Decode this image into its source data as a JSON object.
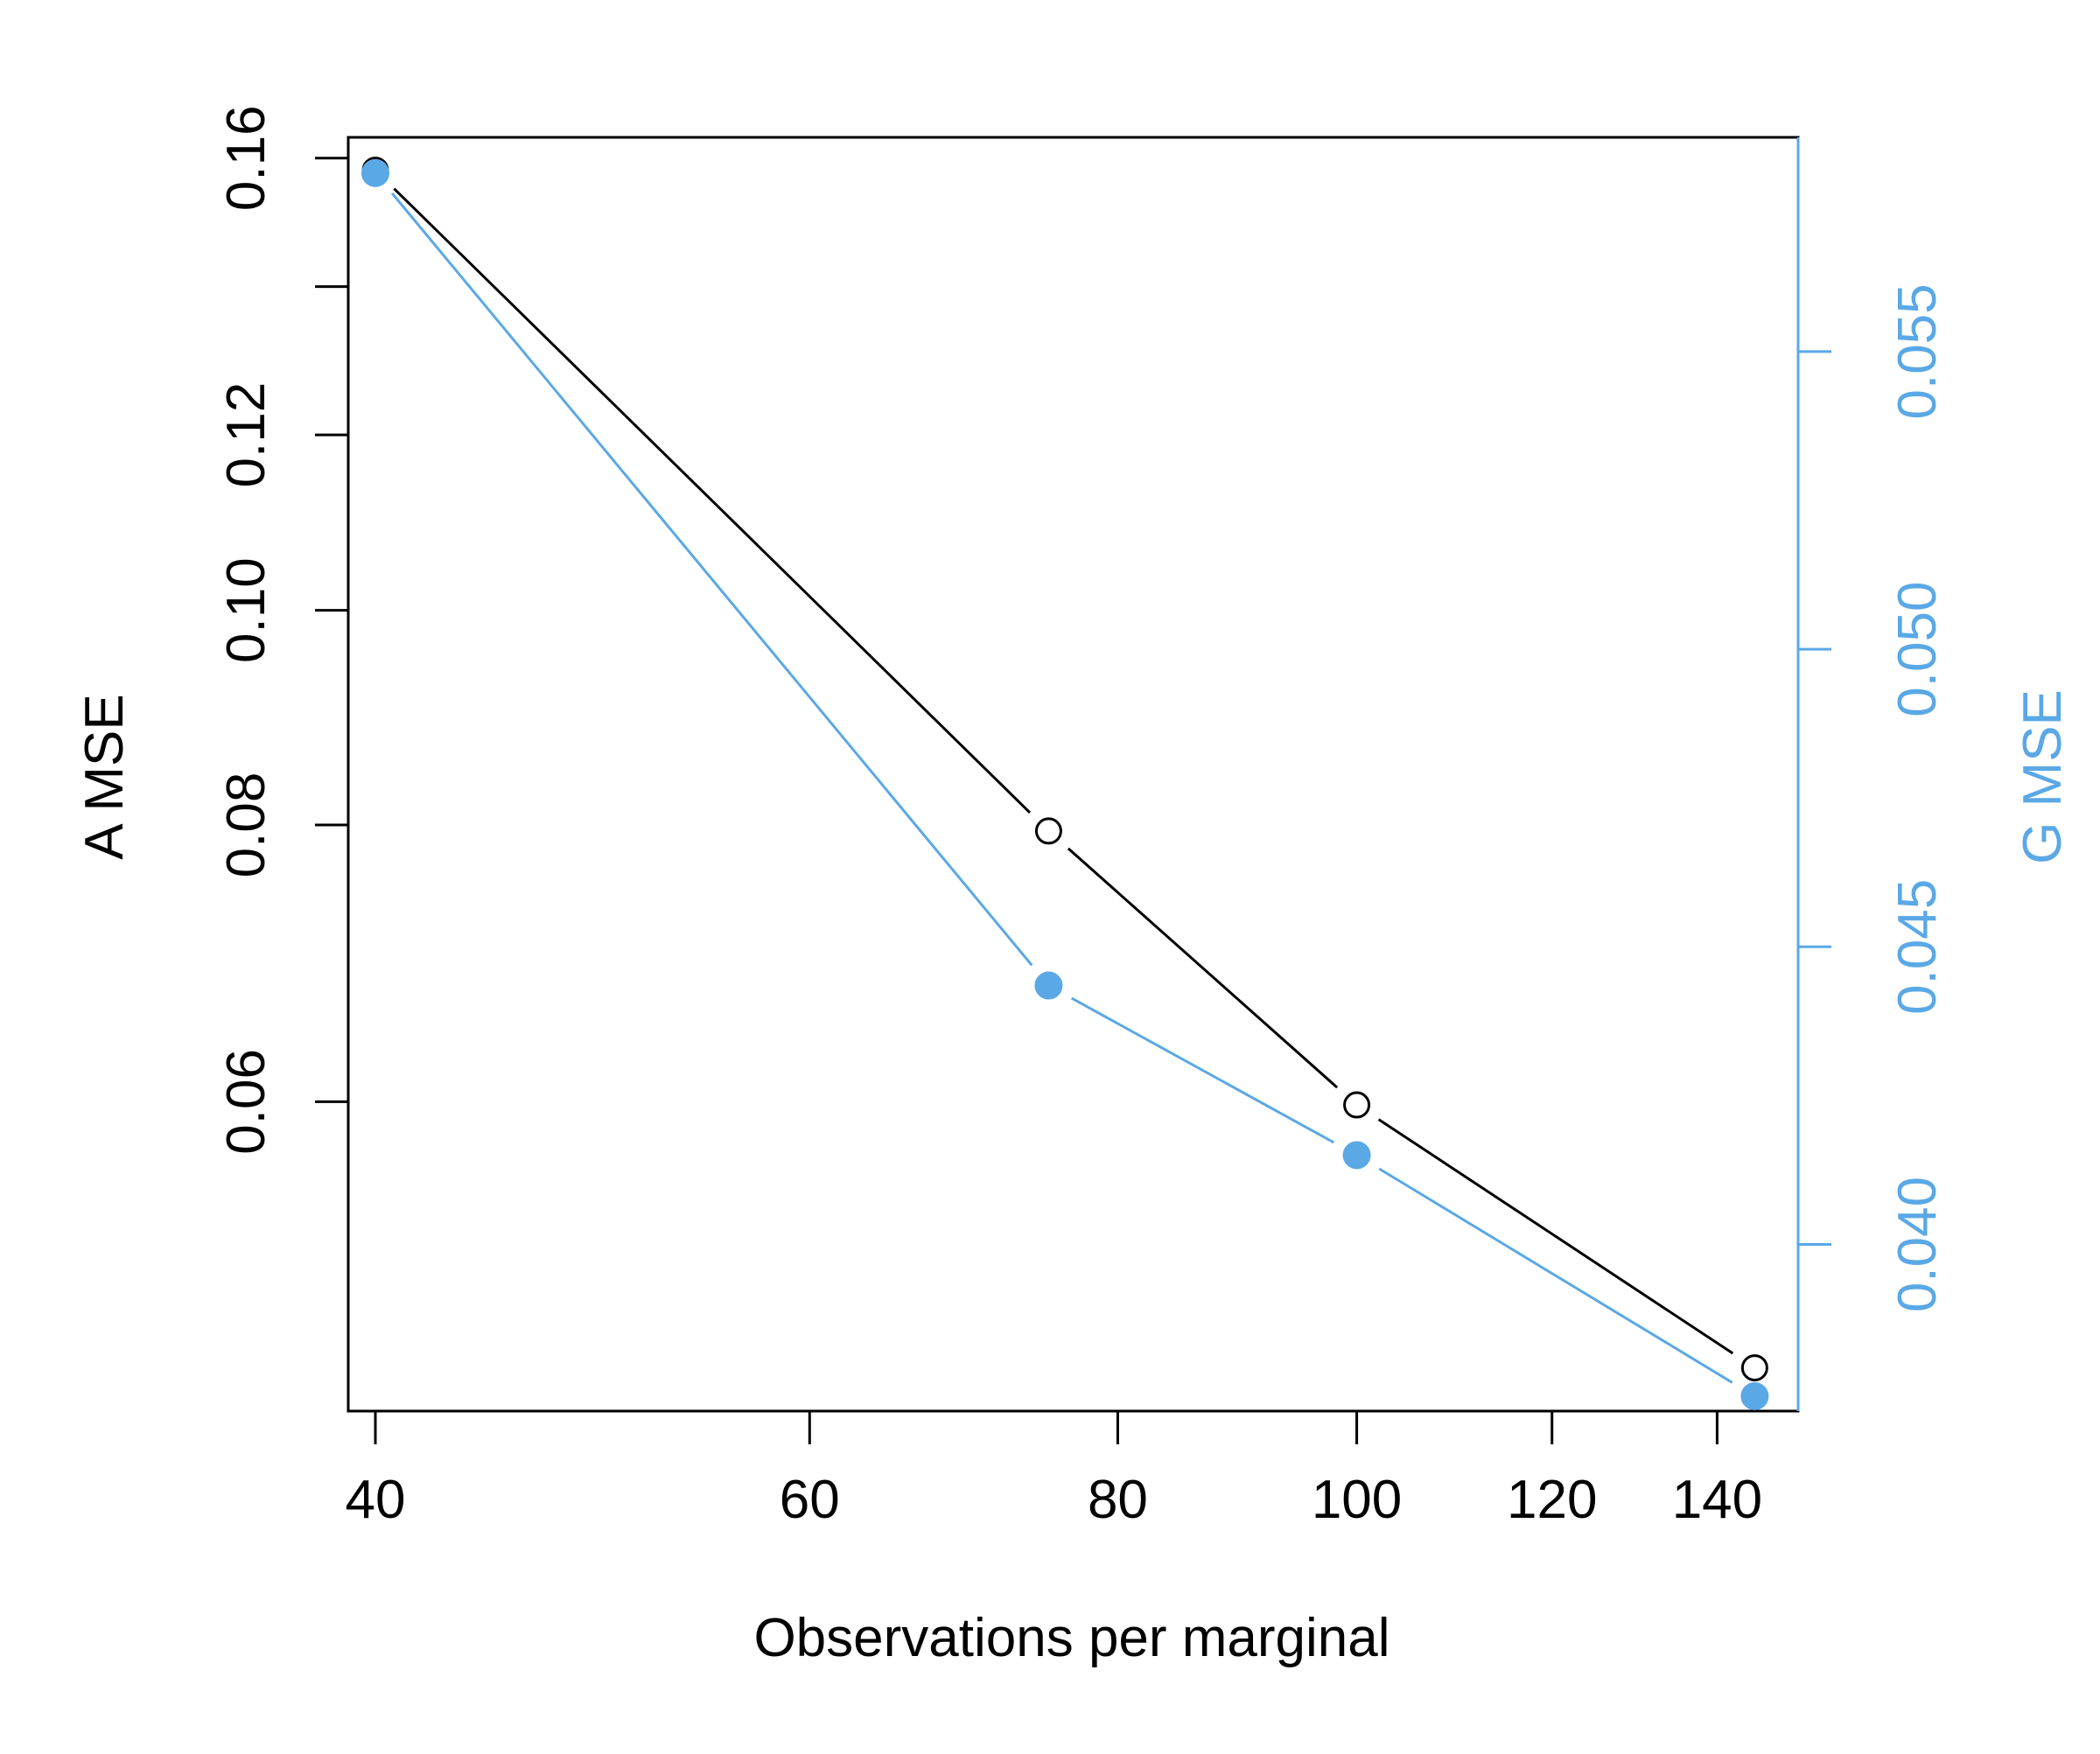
{
  "colors": {
    "series_a": "#000000",
    "series_g": "#5aa8e6",
    "background": "#ffffff"
  },
  "chart_data": {
    "type": "line",
    "title": "",
    "xlabel": "Observations per marginal",
    "x_scale": "log",
    "xlim": [
      39,
      151
    ],
    "x_ticks": [
      40,
      60,
      80,
      100,
      120,
      140
    ],
    "y_left": {
      "label": "A MSE",
      "scale": "log",
      "lim": [
        0.0435,
        0.1635
      ],
      "ticks": [
        0.06,
        0.08,
        0.1,
        0.12,
        0.16
      ],
      "tick_labels": [
        "0.06",
        "0.08",
        "0.10",
        "0.12",
        "0.16"
      ],
      "extra_unlabeled_ticks": [
        0.14
      ]
    },
    "y_right": {
      "label": "G MSE",
      "scale": "linear",
      "lim": [
        0.0372,
        0.0586
      ],
      "ticks": [
        0.04,
        0.045,
        0.05,
        0.055
      ],
      "tick_labels": [
        "0.040",
        "0.045",
        "0.050",
        "0.055"
      ]
    },
    "series": [
      {
        "axis": "left",
        "marker": "open-circle",
        "x": [
          40,
          75,
          100,
          145
        ],
        "y": [
          0.158,
          0.0795,
          0.0598,
          0.0455
        ]
      },
      {
        "axis": "right",
        "marker": "filled-circle",
        "x": [
          40,
          75,
          100,
          145
        ],
        "y": [
          0.058,
          0.04435,
          0.0415,
          0.03745
        ]
      }
    ],
    "grid": false,
    "legend": "none"
  }
}
